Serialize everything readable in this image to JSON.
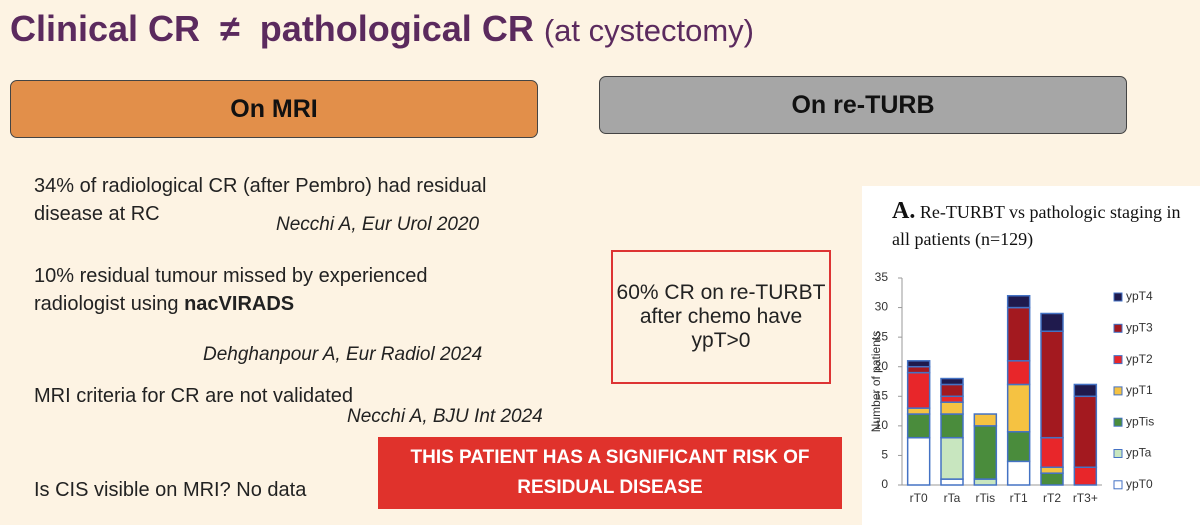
{
  "slide": {
    "title": "Clinical CR  ≠  pathological CR",
    "title_sub": "(at cystectomy)",
    "left_header": "On MRI",
    "right_header": "On re-TURB",
    "bullets": [
      {
        "text": "34% of radiological CR (after Pembro) had residual disease at RC",
        "citation": "Necchi A, Eur Urol 2020"
      },
      {
        "text": "10% residual tumour missed by experienced radiologist using ",
        "bold": "nacVIRADS",
        "citation": "Dehghanpour A, Eur Radiol  2024"
      },
      {
        "text": "MRI criteria for CR are not validated",
        "citation": "Necchi A, BJU Int 2024"
      },
      {
        "text": "Is CIS visible on MRI? No data"
      }
    ],
    "callout": "60% CR on re-TURBT after chemo have ypT>0",
    "banner": "THIS PATIENT HAS A SIGNIFICANT RISK OF RESIDUAL DISEASE"
  },
  "chart_data": {
    "type": "stacked_bar",
    "panel_label": "A.",
    "title": "Re-TURBT vs pathologic staging in all patients (n=129)",
    "y_label": "Number of patients",
    "categories": [
      "rT0",
      "rTa",
      "rTis",
      "rT1",
      "rT2",
      "rT3+"
    ],
    "series": [
      {
        "name": "ypT0",
        "color": "#ffffff",
        "values": [
          8,
          1,
          0,
          4,
          0,
          0
        ]
      },
      {
        "name": "ypTa",
        "color": "#c8e6bf",
        "values": [
          0,
          7,
          1,
          0,
          0,
          0
        ]
      },
      {
        "name": "ypTis",
        "color": "#4a8c3c",
        "values": [
          4,
          4,
          9,
          5,
          2,
          0
        ]
      },
      {
        "name": "ypT1",
        "color": "#f5c242",
        "values": [
          1,
          2,
          2,
          8,
          1,
          0
        ]
      },
      {
        "name": "ypT2",
        "color": "#e8262a",
        "values": [
          6,
          1,
          0,
          4,
          5,
          3
        ]
      },
      {
        "name": "ypT3",
        "color": "#a3191f",
        "values": [
          1,
          2,
          0,
          9,
          18,
          12
        ]
      },
      {
        "name": "ypT4",
        "color": "#1f1a4d",
        "values": [
          1,
          1,
          0,
          2,
          3,
          2
        ]
      }
    ],
    "ylim": [
      0,
      35
    ],
    "yticks": [
      0,
      5,
      10,
      15,
      20,
      25,
      30,
      35
    ]
  }
}
